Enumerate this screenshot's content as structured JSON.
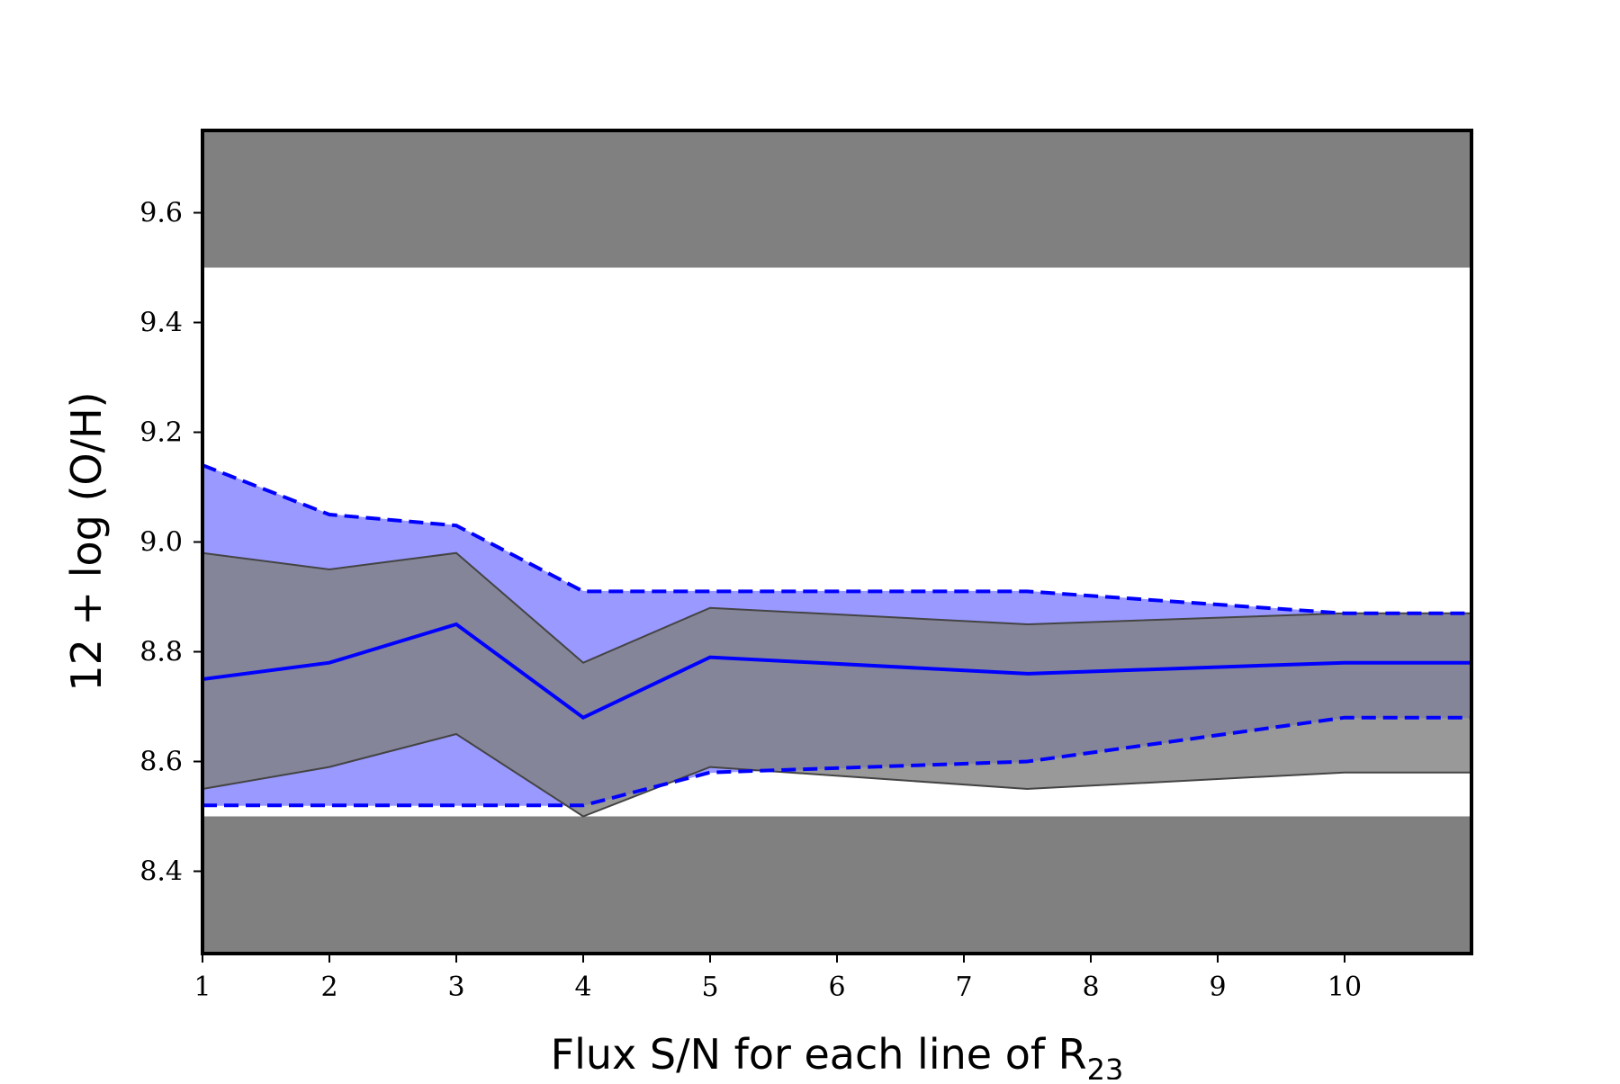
{
  "chart_data": {
    "type": "area",
    "title": "",
    "xlabel": {
      "main": "Flux S/N for each line of R",
      "sub": "23"
    },
    "ylabel": "12 + log (O/H)",
    "xlim": [
      1,
      11
    ],
    "ylim": [
      8.25,
      9.75
    ],
    "xticks": [
      1,
      2,
      3,
      4,
      5,
      6,
      7,
      8,
      9,
      10
    ],
    "yticks": [
      8.4,
      8.6,
      8.8,
      9.0,
      9.2,
      9.4,
      9.6
    ],
    "grey_bands": [
      {
        "y0": 9.5,
        "y1": 9.75
      },
      {
        "y0": 8.25,
        "y1": 8.5
      }
    ],
    "x": [
      1,
      2,
      3,
      4,
      5,
      7.5,
      10,
      11
    ],
    "blue_upper": [
      9.14,
      9.05,
      9.03,
      8.91,
      8.91,
      8.91,
      8.87,
      8.87
    ],
    "blue_lower": [
      8.52,
      8.52,
      8.52,
      8.52,
      8.58,
      8.6,
      8.68,
      8.68
    ],
    "blue_median": [
      8.75,
      8.78,
      8.85,
      8.68,
      8.79,
      8.76,
      8.78,
      8.78
    ],
    "grey_upper": [
      8.98,
      8.95,
      8.98,
      8.78,
      8.88,
      8.85,
      8.87,
      8.87
    ],
    "grey_lower": [
      8.55,
      8.59,
      8.65,
      8.5,
      8.59,
      8.55,
      8.58,
      8.58
    ],
    "colors": {
      "band": "#808080",
      "blue_fill": "#9999ff",
      "grey_fill": "#808080",
      "overlap": "#585898",
      "line": "#0000ff"
    },
    "grid": false
  }
}
